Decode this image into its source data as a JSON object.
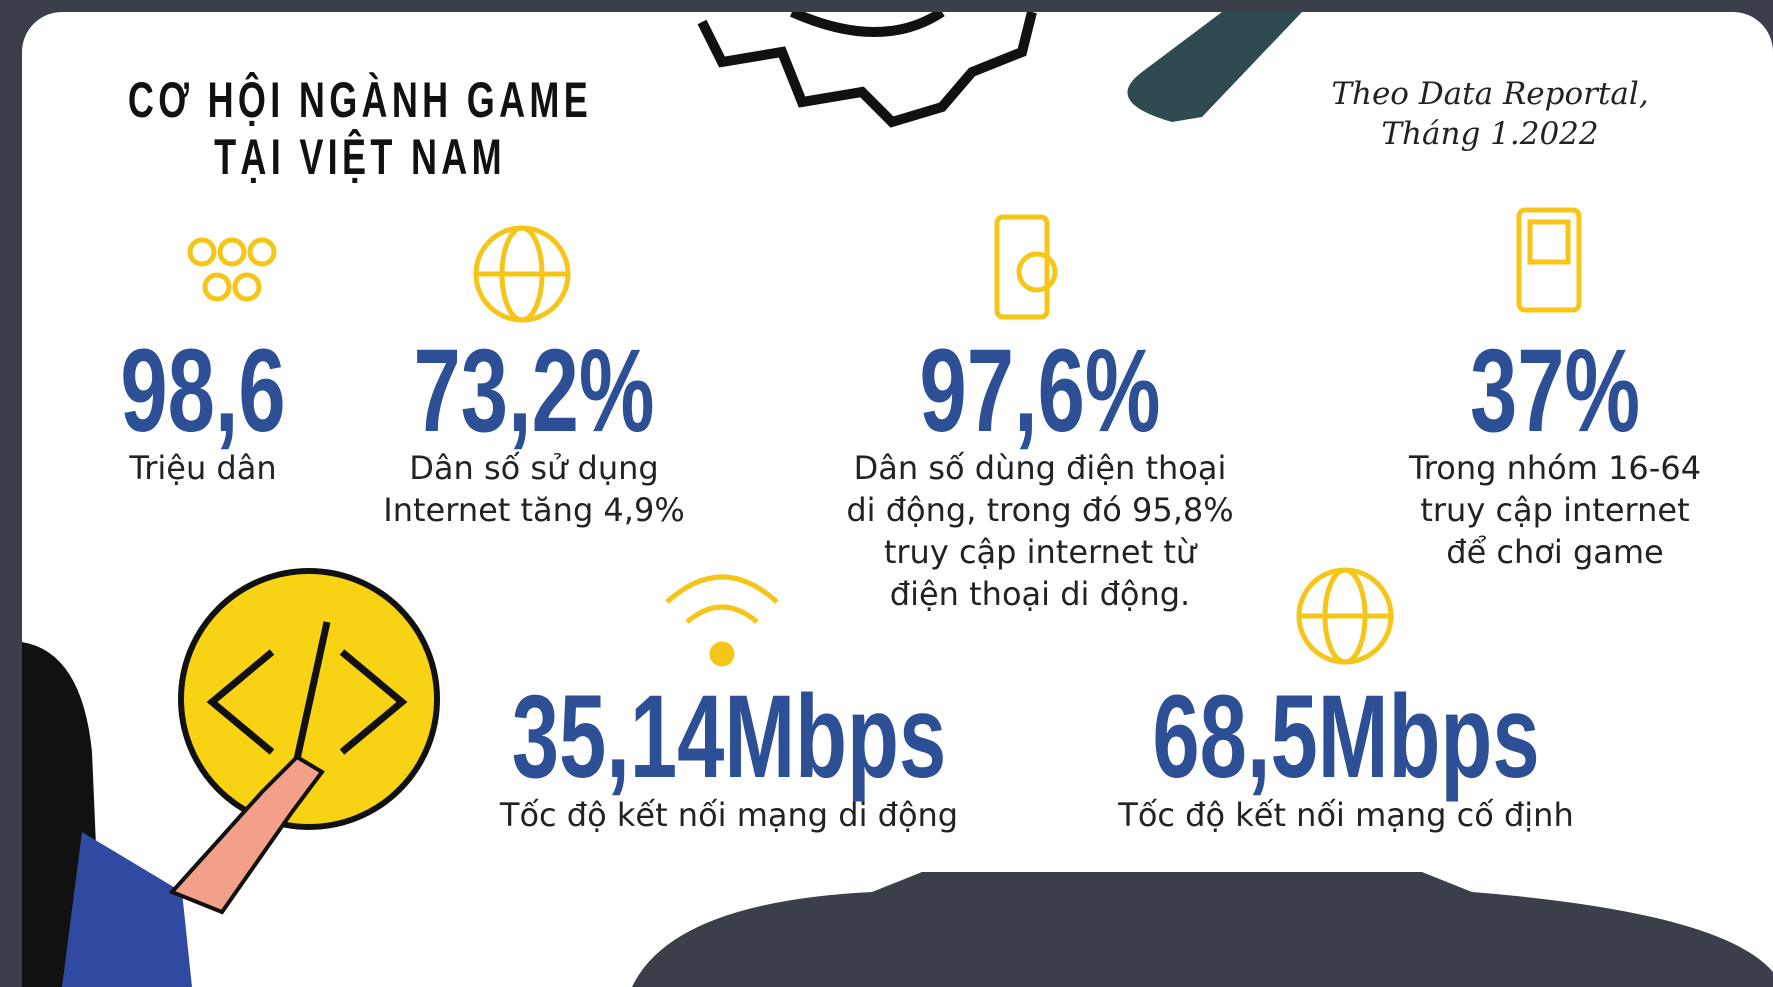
{
  "header": {
    "title": [
      "CƠ HỘI NGÀNH GAME",
      "TẠI VIỆT NAM"
    ],
    "source": [
      "Theo Data Reportal,",
      "Tháng 1.2022"
    ]
  },
  "stats": [
    {
      "value": "98,6",
      "caption": [
        "Triệu dân"
      ]
    },
    {
      "value": "73,2%",
      "caption": [
        "Dân số sử dụng",
        "Internet tăng 4,9%"
      ]
    },
    {
      "value": "97,6%",
      "caption": [
        "Dân số dùng điện thoại",
        "di động, trong đó 95,8%",
        "truy cập internet từ",
        "điện thoại di động."
      ]
    },
    {
      "value": "37%",
      "caption": [
        "Trong nhóm 16-64",
        "truy cập internet",
        "để chơi game"
      ]
    },
    {
      "value": "35,14Mbps",
      "caption": [
        "Tốc độ kết nối mạng di động"
      ]
    },
    {
      "value": "68,5Mbps",
      "caption": [
        "Tốc độ kết nối mạng cố định"
      ]
    }
  ]
}
